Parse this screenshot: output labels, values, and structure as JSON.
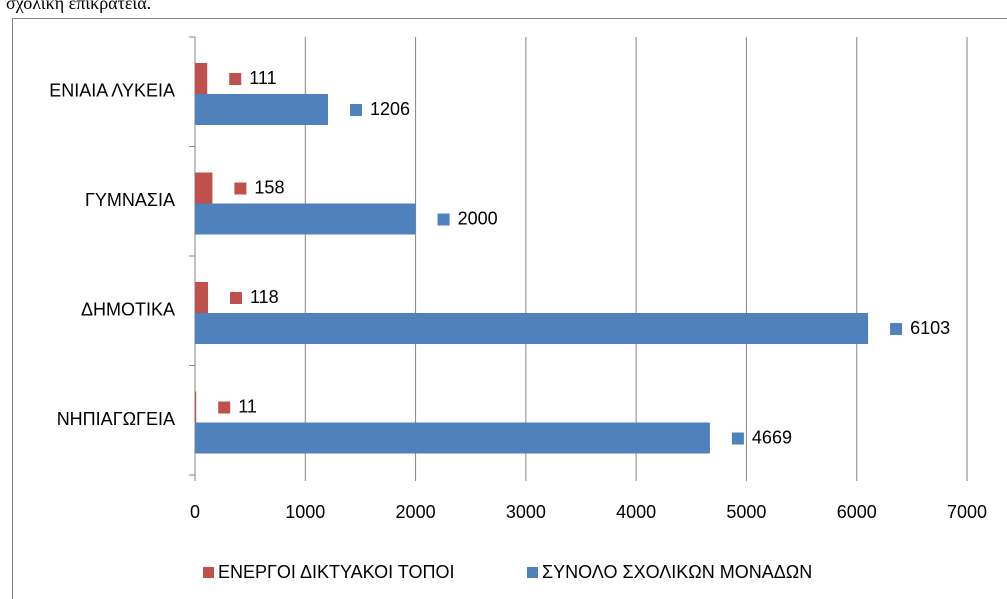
{
  "caption": "σχολική επικράτεια.",
  "chart_data": {
    "type": "hbar",
    "categories": [
      "ΕΝΙΑΙΑ ΛΥΚΕΙΑ",
      "ΓΥΜΝΑΣΙΑ",
      "ΔΗΜΟΤΙΚΑ",
      "ΝΗΠΙΑΓΩΓΕΙΑ"
    ],
    "series": [
      {
        "name": "ΕΝΕΡΓΟΙ ΔΙΚΤΥΑΚΟΙ ΤΟΠΟΙ",
        "color": "#c0504d",
        "values": [
          111,
          158,
          118,
          11
        ]
      },
      {
        "name": "ΣΥΝΟΛΟ ΣΧΟΛΙΚΩΝ ΜΟΝΑΔΩΝ",
        "color": "#4f81bd",
        "values": [
          1206,
          2000,
          6103,
          4669
        ]
      }
    ],
    "xlim": [
      0,
      7000
    ],
    "xticks": [
      0,
      1000,
      2000,
      3000,
      4000,
      5000,
      6000,
      7000
    ],
    "grid": true,
    "legend": "bottom"
  }
}
